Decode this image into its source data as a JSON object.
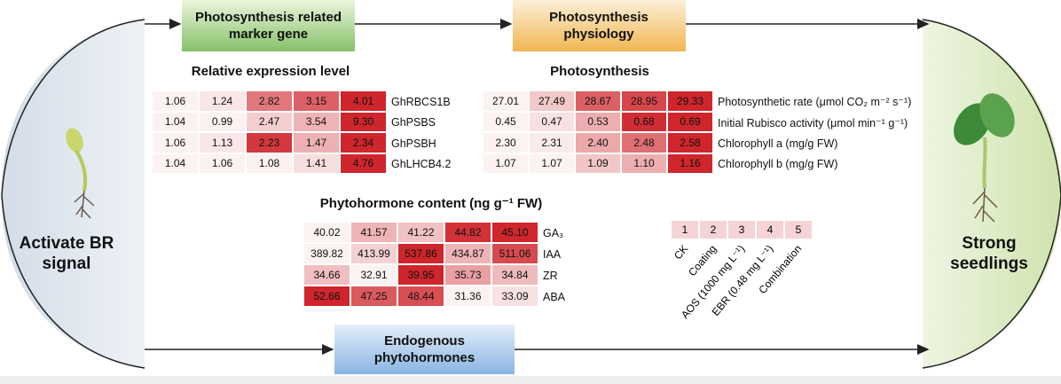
{
  "left_label": "Activate BR signal",
  "right_label": "Strong seedlings",
  "boxes": [
    {
      "label": "Photosynthesis related marker gene"
    },
    {
      "label": "Photosynthesis physiology"
    },
    {
      "label": "Endogenous phytohormones"
    }
  ],
  "heatmaps": [
    {
      "title": "Relative expression level",
      "rows": [
        {
          "label": "GhRBCS1B",
          "values": [
            "1.06",
            "1.24",
            "2.82",
            "3.15",
            "4.01"
          ]
        },
        {
          "label": "GhPSBS",
          "values": [
            "1.04",
            "0.99",
            "2.47",
            "3.54",
            "9.30"
          ]
        },
        {
          "label": "GhPSBH",
          "values": [
            "1.06",
            "1.13",
            "2.23",
            "1.47",
            "2.34"
          ]
        },
        {
          "label": "GhLHCB4.2",
          "values": [
            "1.04",
            "1.06",
            "1.08",
            "1.41",
            "4.76"
          ]
        }
      ]
    },
    {
      "title": "Photosynthesis",
      "rows": [
        {
          "label": "Photosynthetic rate (μmol CO₂ m⁻² s⁻¹)",
          "values": [
            "27.01",
            "27.49",
            "28.67",
            "28.95",
            "29.33"
          ]
        },
        {
          "label": "Initial Rubisco activity (μmol min⁻¹ g⁻¹)",
          "values": [
            "0.45",
            "0.47",
            "0.53",
            "0.68",
            "0.69"
          ]
        },
        {
          "label": "Chlorophyll a (mg/g FW)",
          "values": [
            "2.30",
            "2.31",
            "2.40",
            "2.48",
            "2.58"
          ]
        },
        {
          "label": "Chlorophyll b (mg/g FW)",
          "values": [
            "1.07",
            "1.07",
            "1.09",
            "1.10",
            "1.16"
          ]
        }
      ]
    },
    {
      "title": "Phytohormone content (ng g⁻¹ FW)",
      "rows": [
        {
          "label": "GA₃",
          "values": [
            "40.02",
            "41.57",
            "41.22",
            "44.82",
            "45.10"
          ]
        },
        {
          "label": "IAA",
          "values": [
            "389.82",
            "413.99",
            "537.86",
            "434.87",
            "511.06"
          ]
        },
        {
          "label": "ZR",
          "values": [
            "34.66",
            "32.91",
            "39.95",
            "35.73",
            "34.84"
          ]
        },
        {
          "label": "ABA",
          "values": [
            "52.66",
            "47.25",
            "48.44",
            "31.36",
            "33.09"
          ]
        }
      ]
    }
  ],
  "legend": {
    "numbers": [
      "1",
      "2",
      "3",
      "4",
      "5"
    ],
    "labels": [
      "CK",
      "Coating",
      "AOS (1000 mg L⁻¹)",
      "EBR (0.48 mg L⁻¹)",
      "Combination"
    ]
  }
}
